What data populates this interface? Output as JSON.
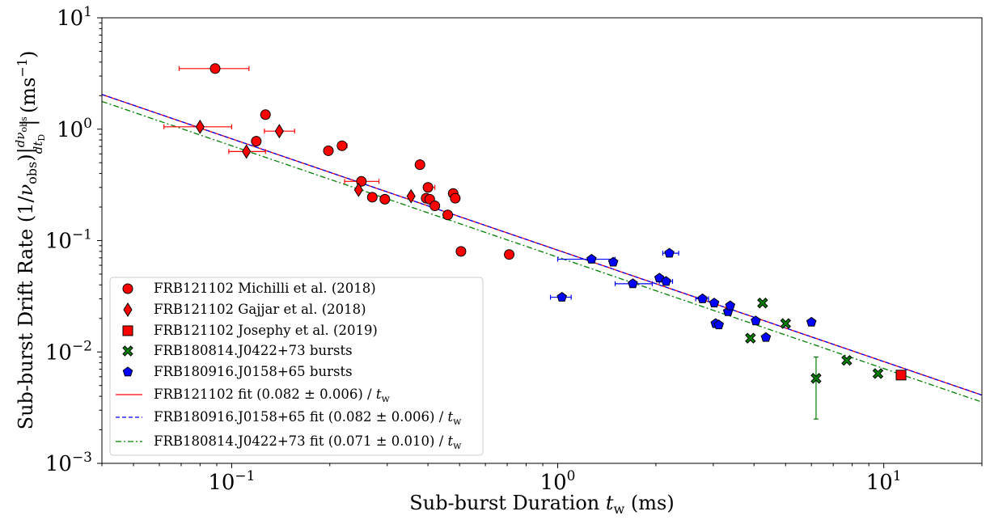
{
  "chart_data": {
    "type": "scatter",
    "xscale": "log",
    "yscale": "log",
    "xlim": [
      0.04,
      20
    ],
    "ylim": [
      0.001,
      10
    ],
    "xticks": [
      {
        "value": 0.1,
        "base": "10",
        "exp": "−1"
      },
      {
        "value": 1,
        "base": "10",
        "exp": "0"
      },
      {
        "value": 10,
        "base": "10",
        "exp": "1"
      }
    ],
    "yticks": [
      {
        "value": 0.001,
        "base": "10",
        "exp": "−3"
      },
      {
        "value": 0.01,
        "base": "10",
        "exp": "−2"
      },
      {
        "value": 0.1,
        "base": "10",
        "exp": "−1"
      },
      {
        "value": 1,
        "base": "10",
        "exp": "0"
      },
      {
        "value": 10,
        "base": "10",
        "exp": "1"
      }
    ],
    "xlabel": {
      "pre": "Sub-burst Duration ",
      "italic": "t",
      "sub": "w",
      "post": " (ms)"
    },
    "ylabel": {
      "pre": "Sub-burst Drift Rate  (1/",
      "nu": "ν",
      "sub": "obs",
      "mid": ")|",
      "frac_num": "dν",
      "frac_num_sub": "obs",
      "frac_den": "dt",
      "frac_den_sub": "D",
      "post": "| (ms",
      "sup": "−1",
      "close": ")"
    },
    "grid": false,
    "legend_position": "lower-left",
    "series": [
      {
        "name": "FRB121102 Michilli et al. (2018)",
        "marker": "circle",
        "color": "#ff0000",
        "points": [
          {
            "x": 0.089,
            "y": 3.5,
            "xerr": [
              0.069,
              0.113
            ]
          },
          {
            "x": 0.119,
            "y": 0.78
          },
          {
            "x": 0.127,
            "y": 1.35
          },
          {
            "x": 0.198,
            "y": 0.64
          },
          {
            "x": 0.218,
            "y": 0.71,
            "xerr": [
              0.212,
              0.226
            ]
          },
          {
            "x": 0.25,
            "y": 0.34,
            "xerr": [
              0.222,
              0.283
            ]
          },
          {
            "x": 0.27,
            "y": 0.245
          },
          {
            "x": 0.295,
            "y": 0.235
          },
          {
            "x": 0.378,
            "y": 0.48,
            "xerr": [
              0.368,
              0.39
            ]
          },
          {
            "x": 0.395,
            "y": 0.24
          },
          {
            "x": 0.4,
            "y": 0.3,
            "xerr": [
              0.39,
              0.42
            ]
          },
          {
            "x": 0.405,
            "y": 0.235
          },
          {
            "x": 0.42,
            "y": 0.205
          },
          {
            "x": 0.46,
            "y": 0.17
          },
          {
            "x": 0.478,
            "y": 0.265
          },
          {
            "x": 0.485,
            "y": 0.24
          },
          {
            "x": 0.505,
            "y": 0.08
          },
          {
            "x": 0.71,
            "y": 0.075
          }
        ]
      },
      {
        "name": "FRB121102 Gajjar et al. (2018)",
        "marker": "diamond",
        "color": "#ff0000",
        "points": [
          {
            "x": 0.08,
            "y": 1.05,
            "xerr": [
              0.062,
              0.1
            ]
          },
          {
            "x": 0.111,
            "y": 0.63,
            "xerr": [
              0.098,
              0.127
            ]
          },
          {
            "x": 0.14,
            "y": 0.96,
            "xerr": [
              0.126,
              0.156
            ]
          },
          {
            "x": 0.245,
            "y": 0.285
          },
          {
            "x": 0.355,
            "y": 0.25
          }
        ]
      },
      {
        "name": "FRB121102 Josephy et al. (2019)",
        "marker": "square",
        "color": "#ff0000",
        "points": [
          {
            "x": 11.3,
            "y": 0.0062
          }
        ]
      },
      {
        "name": "FRB180814.J0422+73 bursts",
        "marker": "x",
        "color": "#008000",
        "points": [
          {
            "x": 3.9,
            "y": 0.0133
          },
          {
            "x": 4.25,
            "y": 0.0275
          },
          {
            "x": 5.0,
            "y": 0.018
          },
          {
            "x": 6.2,
            "y": 0.0058,
            "yerr": [
              0.0025,
              0.009
            ]
          },
          {
            "x": 7.7,
            "y": 0.0084
          },
          {
            "x": 9.6,
            "y": 0.0064
          }
        ]
      },
      {
        "name": "FRB180916.J0158+65 bursts",
        "marker": "pentagon",
        "color": "#0000ff",
        "points": [
          {
            "x": 1.03,
            "y": 0.031,
            "xerr": [
              0.95,
              1.1
            ]
          },
          {
            "x": 1.27,
            "y": 0.068,
            "xerr": [
              1.0,
              1.5
            ]
          },
          {
            "x": 1.48,
            "y": 0.064
          },
          {
            "x": 1.7,
            "y": 0.041,
            "xerr": [
              1.5,
              1.95
            ]
          },
          {
            "x": 2.05,
            "y": 0.046
          },
          {
            "x": 2.15,
            "y": 0.043,
            "xerr": [
              2.05,
              2.25
            ]
          },
          {
            "x": 2.2,
            "y": 0.077,
            "xerr": [
              2.1,
              2.35
            ]
          },
          {
            "x": 2.78,
            "y": 0.03,
            "xerr": [
              2.65,
              2.9
            ]
          },
          {
            "x": 3.02,
            "y": 0.0275
          },
          {
            "x": 3.05,
            "y": 0.018
          },
          {
            "x": 3.12,
            "y": 0.0175
          },
          {
            "x": 3.33,
            "y": 0.023
          },
          {
            "x": 3.38,
            "y": 0.026
          },
          {
            "x": 4.05,
            "y": 0.019
          },
          {
            "x": 4.35,
            "y": 0.0135
          },
          {
            "x": 6.0,
            "y": 0.0185
          }
        ]
      }
    ],
    "fits": [
      {
        "name": "FRB121102 fit (0.082 ± 0.006) / ",
        "var": "t",
        "var_sub": "w",
        "coef": 0.082,
        "color": "#ff0000",
        "dash": ""
      },
      {
        "name": "FRB180916.J0158+65 fit (0.082 ± 0.006) / ",
        "var": "t",
        "var_sub": "w",
        "coef": 0.082,
        "color": "#0000ff",
        "dash": "5,3"
      },
      {
        "name": "FRB180814.J0422+73 fit (0.071 ± 0.010) / ",
        "var": "t",
        "var_sub": "w",
        "coef": 0.071,
        "color": "#008000",
        "dash": "7,3,2,3"
      }
    ]
  }
}
